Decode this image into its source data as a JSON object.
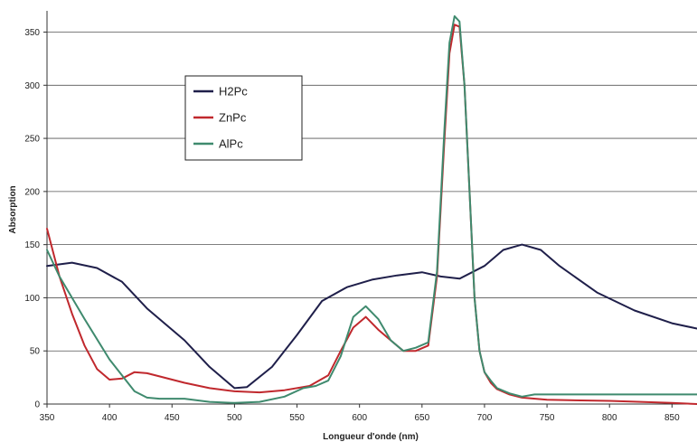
{
  "chart_data": {
    "type": "line",
    "xlabel": "Longueur d'onde (nm)",
    "ylabel": "Absorption",
    "xlim": [
      350,
      870
    ],
    "ylim": [
      0,
      370
    ],
    "xticks": [
      350,
      400,
      450,
      500,
      550,
      600,
      650,
      700,
      750,
      800,
      850
    ],
    "yticks": [
      0,
      50,
      100,
      150,
      200,
      250,
      300,
      350
    ],
    "grid": "horizontal",
    "legend_position": "top-left",
    "series": [
      {
        "name": "H2Pc",
        "color": "#1f1f4a",
        "x": [
          350,
          370,
          390,
          410,
          430,
          460,
          480,
          500,
          510,
          530,
          550,
          570,
          590,
          610,
          630,
          650,
          665,
          680,
          700,
          715,
          730,
          745,
          760,
          790,
          820,
          850,
          870
        ],
        "y": [
          130,
          133,
          128,
          115,
          90,
          60,
          35,
          15,
          16,
          35,
          65,
          97,
          110,
          117,
          121,
          124,
          120,
          118,
          130,
          145,
          150,
          145,
          130,
          105,
          88,
          76,
          71
        ]
      },
      {
        "name": "ZnPc",
        "color": "#c0282d",
        "x": [
          350,
          360,
          370,
          380,
          390,
          400,
          410,
          420,
          430,
          440,
          460,
          480,
          500,
          520,
          540,
          560,
          575,
          585,
          595,
          605,
          615,
          625,
          635,
          645,
          655,
          662,
          668,
          672,
          676,
          680,
          684,
          688,
          692,
          696,
          700,
          705,
          710,
          720,
          730,
          750,
          800,
          850,
          870
        ],
        "y": [
          165,
          120,
          85,
          55,
          33,
          23,
          24,
          30,
          29,
          26,
          20,
          15,
          12,
          11,
          13,
          17,
          27,
          50,
          72,
          82,
          70,
          60,
          50,
          50,
          55,
          120,
          250,
          330,
          357,
          355,
          300,
          200,
          100,
          50,
          30,
          20,
          14,
          9,
          6,
          4,
          3,
          1,
          0
        ]
      },
      {
        "name": "AlPc",
        "color": "#3f8a6e",
        "x": [
          350,
          360,
          380,
          400,
          420,
          430,
          440,
          460,
          480,
          500,
          520,
          540,
          555,
          565,
          575,
          585,
          595,
          605,
          615,
          625,
          635,
          645,
          655,
          662,
          668,
          672,
          676,
          680,
          684,
          688,
          692,
          696,
          700,
          705,
          710,
          720,
          730,
          740,
          760,
          800,
          850,
          870
        ],
        "y": [
          145,
          120,
          80,
          42,
          12,
          6,
          5,
          5,
          2,
          1,
          2,
          7,
          15,
          17,
          22,
          45,
          82,
          92,
          80,
          60,
          50,
          53,
          58,
          125,
          260,
          340,
          365,
          360,
          300,
          200,
          100,
          50,
          30,
          22,
          15,
          10,
          7,
          9,
          9,
          9,
          9,
          9
        ]
      }
    ]
  }
}
